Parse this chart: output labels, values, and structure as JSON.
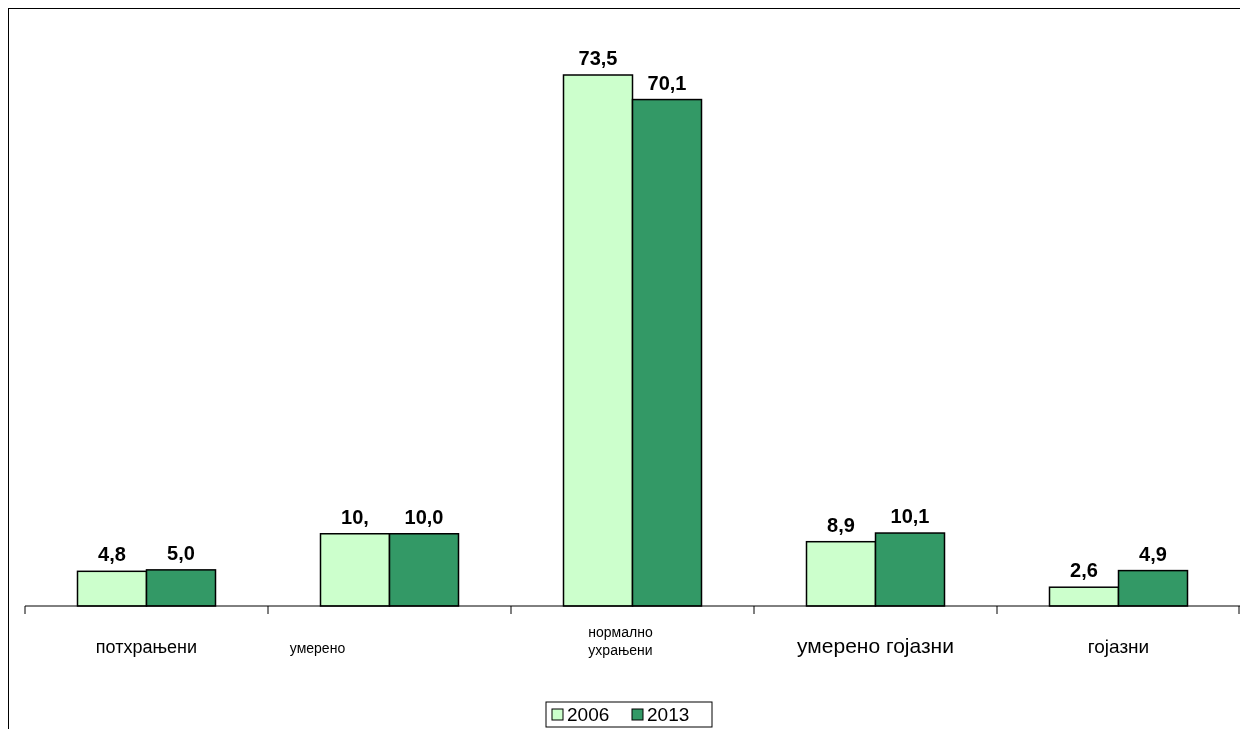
{
  "chart_data": {
    "type": "bar",
    "categories": [
      "потхрањени",
      "умерено",
      "нормално ухрањени",
      "умерено гојазни",
      "гојазни"
    ],
    "series": [
      {
        "name": "2006",
        "color": "#ccffcc",
        "values": [
          4.8,
          10.0,
          73.5,
          8.9,
          2.6
        ],
        "value_labels": [
          "4,8",
          "10,",
          "73,5",
          "8,9",
          "2,6"
        ]
      },
      {
        "name": "2013",
        "color": "#339966",
        "values": [
          5.0,
          10.0,
          70.1,
          10.1,
          4.9
        ],
        "value_labels": [
          "5,0",
          "10,0",
          "70,1",
          "10,1",
          "4,9"
        ]
      }
    ],
    "legend": "bottom"
  }
}
